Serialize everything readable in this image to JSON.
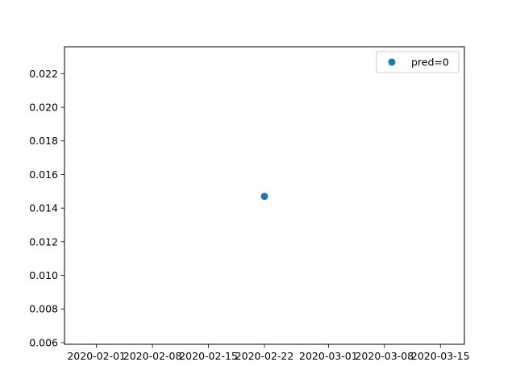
{
  "chart_data": {
    "type": "scatter",
    "title": "",
    "xlabel": "",
    "ylabel": "",
    "x_axis": {
      "scale": "date",
      "range": [
        "2020-01-28",
        "2020-03-18"
      ],
      "ticks": [
        "2020-02-01",
        "2020-02-08",
        "2020-02-15",
        "2020-02-22",
        "2020-03-01",
        "2020-03-08",
        "2020-03-15"
      ]
    },
    "y_axis": {
      "range": [
        0.0059,
        0.0236
      ],
      "ticks": [
        0.006,
        0.008,
        0.01,
        0.012,
        0.014,
        0.016,
        0.018,
        0.02,
        0.022
      ],
      "tick_labels": [
        "0.006",
        "0.008",
        "0.010",
        "0.012",
        "0.014",
        "0.016",
        "0.018",
        "0.020",
        "0.022"
      ]
    },
    "grid": false,
    "legend": {
      "position": "top-right",
      "entries": [
        "pred=0"
      ]
    },
    "series": [
      {
        "name": "pred=0",
        "color": "#1f77b4",
        "points": [
          {
            "x": "2020-02-22",
            "y": 0.0147
          }
        ]
      }
    ]
  }
}
